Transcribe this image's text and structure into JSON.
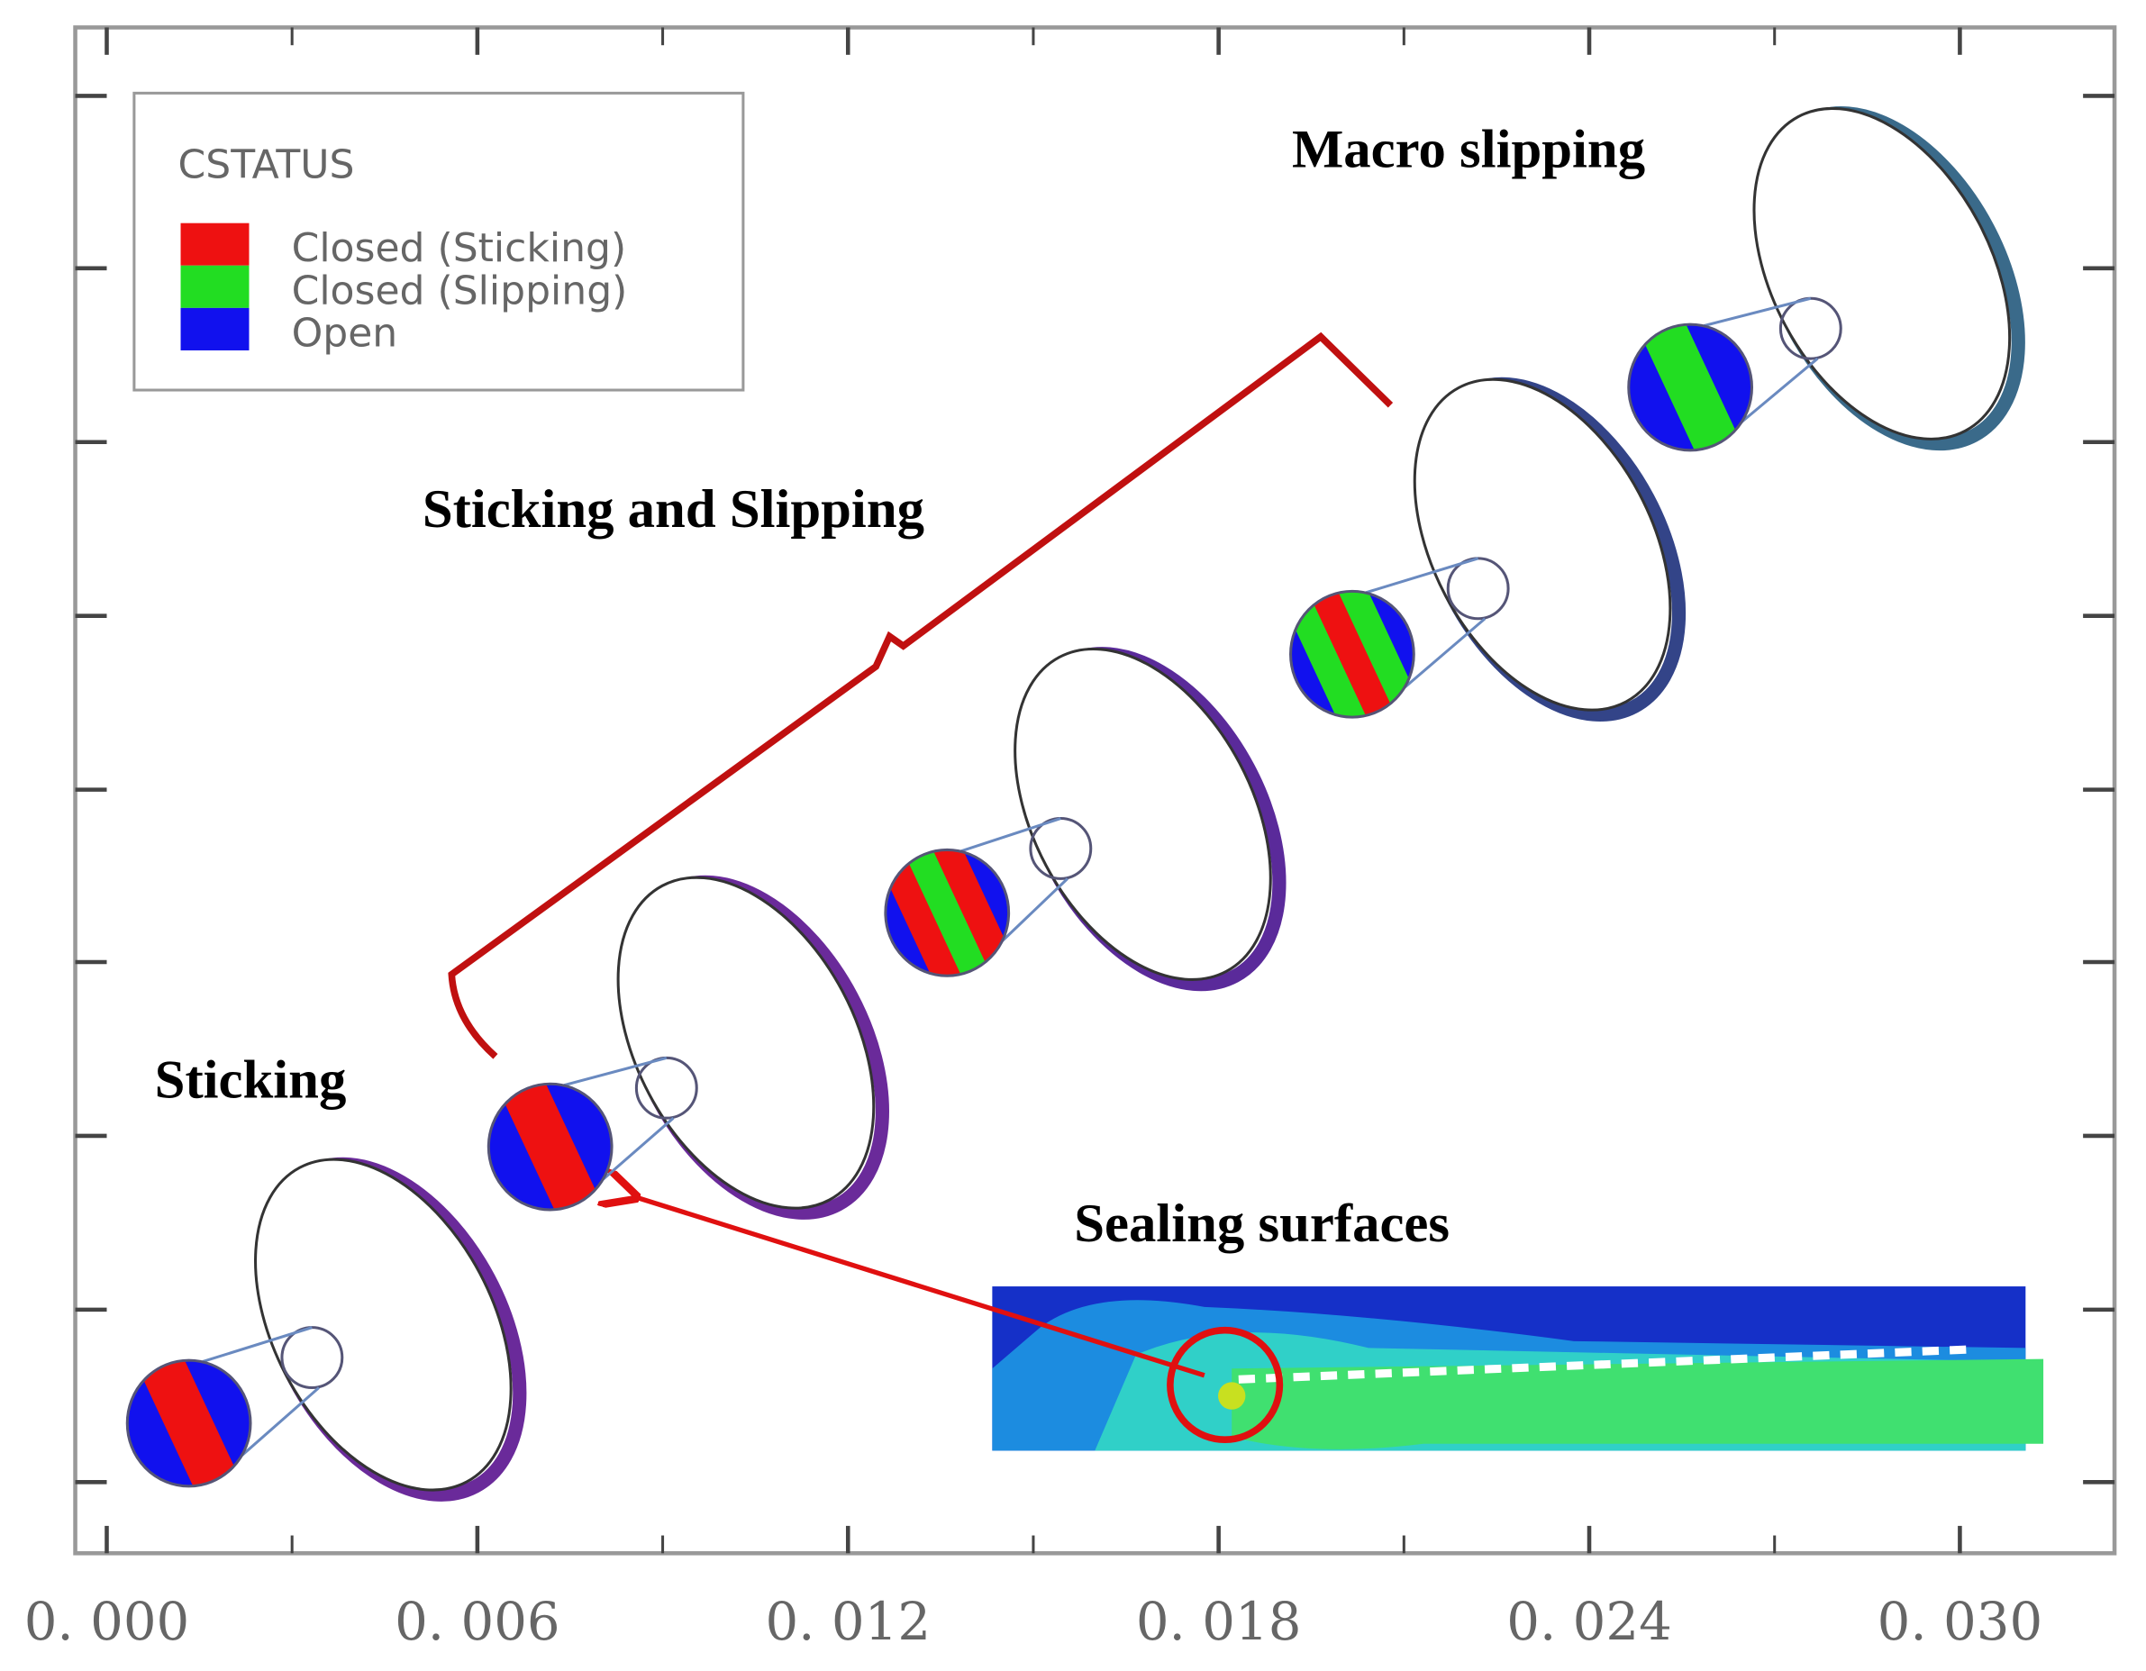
{
  "legend": {
    "title": "CSTATUS",
    "items": [
      {
        "label": "Closed (Sticking)",
        "color": "#ee1111"
      },
      {
        "label": "Closed (Slipping)",
        "color": "#22dd22"
      },
      {
        "label": "Open",
        "color": "#1111ee"
      }
    ]
  },
  "annotations": {
    "macro": "Macro slipping",
    "mixed": "Sticking and Slipping",
    "sticking": "Sticking",
    "sealing": "Sealing surfaces"
  },
  "x_axis": {
    "ticks": [
      {
        "value": 0,
        "label": "0. 000"
      },
      {
        "value": 0.006,
        "label": "0. 006"
      },
      {
        "value": 0.012,
        "label": "0. 012"
      },
      {
        "value": 0.018,
        "label": "0. 018"
      },
      {
        "value": 0.024,
        "label": "0. 024"
      },
      {
        "value": 0.03,
        "label": "0. 030"
      }
    ]
  }
}
